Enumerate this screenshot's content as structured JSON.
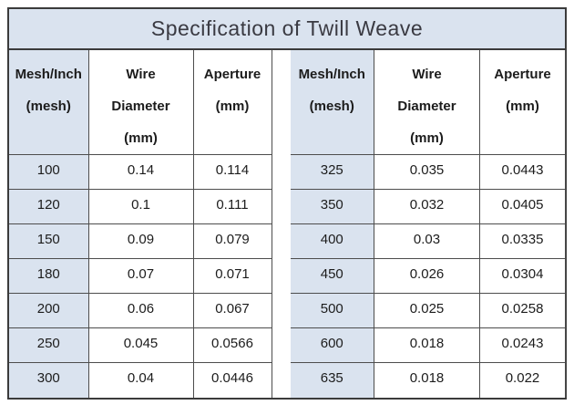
{
  "title": "Specification of Twill Weave",
  "colors": {
    "panel_blue": "#dae3ef",
    "outer_border": "#3b3b3b",
    "grid_line": "#4d4d4d",
    "text": "#1c1c1c",
    "title_text": "#3a3a42",
    "background": "#ffffff"
  },
  "chart_data": {
    "type": "table",
    "title": "Specification of Twill Weave",
    "layout": "two side-by-side panels sharing identical column headers, separated by a blank spacer column; first column of each panel shaded light blue",
    "panels": [
      {
        "headers": [
          [
            "Mesh/Inch",
            "(mesh)"
          ],
          [
            "Wire",
            "Diameter",
            "(mm)"
          ],
          [
            "Aperture",
            "(mm)"
          ]
        ],
        "rows": [
          [
            "100",
            "0.14",
            "0.114"
          ],
          [
            "120",
            "0.1",
            "0.111"
          ],
          [
            "150",
            "0.09",
            "0.079"
          ],
          [
            "180",
            "0.07",
            "0.071"
          ],
          [
            "200",
            "0.06",
            "0.067"
          ],
          [
            "250",
            "0.045",
            "0.0566"
          ],
          [
            "300",
            "0.04",
            "0.0446"
          ]
        ]
      },
      {
        "headers": [
          [
            "Mesh/Inch",
            "(mesh)"
          ],
          [
            "Wire",
            "Diameter",
            "(mm)"
          ],
          [
            "Aperture",
            "(mm)"
          ]
        ],
        "rows": [
          [
            "325",
            "0.035",
            "0.0443"
          ],
          [
            "350",
            "0.032",
            "0.0405"
          ],
          [
            "400",
            "0.03",
            "0.0335"
          ],
          [
            "450",
            "0.026",
            "0.0304"
          ],
          [
            "500",
            "0.025",
            "0.0258"
          ],
          [
            "600",
            "0.018",
            "0.0243"
          ],
          [
            "635",
            "0.018",
            "0.022"
          ]
        ]
      }
    ]
  }
}
